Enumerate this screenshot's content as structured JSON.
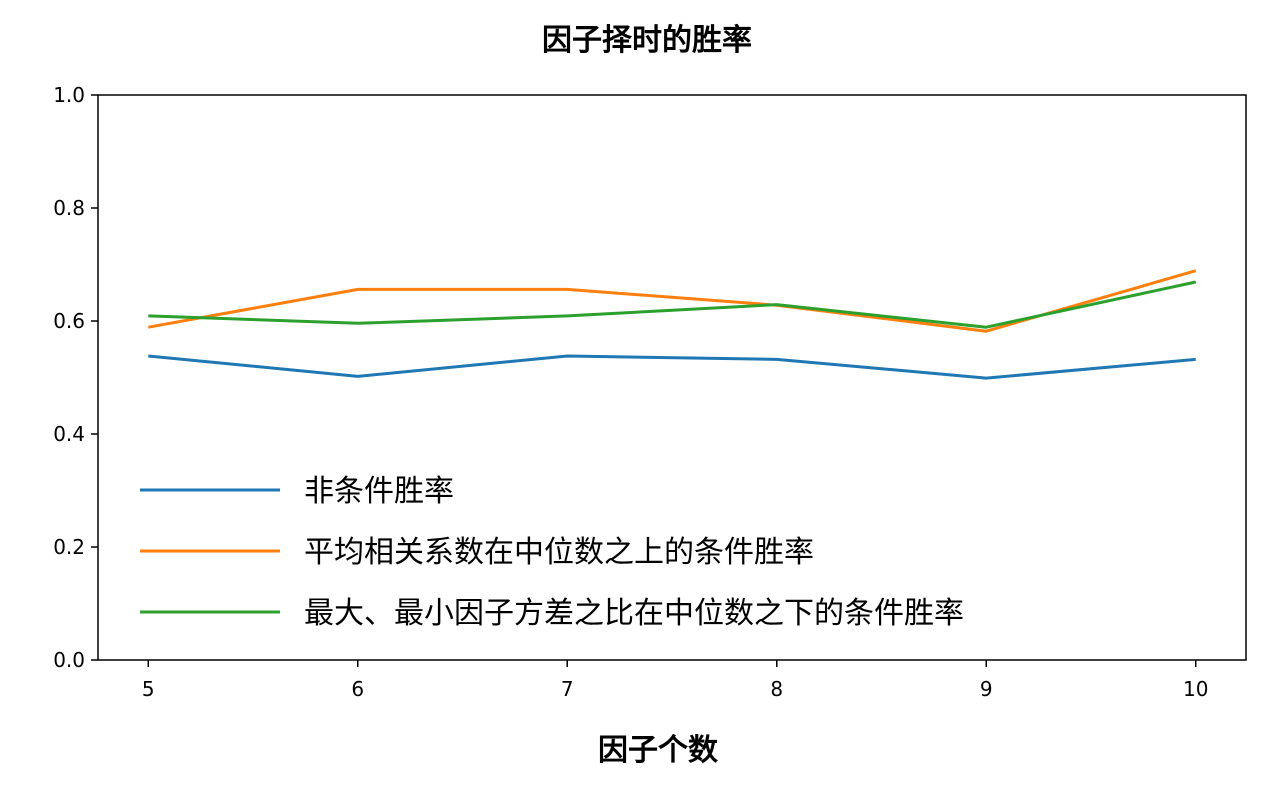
{
  "chart_data": {
    "type": "line",
    "title": "因子择时的胜率",
    "xlabel": "因子个数",
    "ylabel": "",
    "x": [
      5,
      6,
      7,
      8,
      9,
      10
    ],
    "xticks": [
      "5",
      "6",
      "7",
      "8",
      "9",
      "10"
    ],
    "xlim": [
      4.76,
      10.24
    ],
    "ylim": [
      0.0,
      1.0
    ],
    "yticks": [
      "0.0",
      "0.2",
      "0.4",
      "0.6",
      "0.8",
      "1.0"
    ],
    "grid": false,
    "legend_position": "lower-left",
    "series": [
      {
        "name": "非条件胜率",
        "color": "#1f77b4",
        "values": [
          0.538,
          0.502,
          0.538,
          0.532,
          0.499,
          0.532
        ]
      },
      {
        "name": "平均相关系数在中位数之上的条件胜率",
        "color": "#ff7f0e",
        "values": [
          0.589,
          0.656,
          0.656,
          0.628,
          0.582,
          0.689
        ]
      },
      {
        "name": "最大、最小因子方差之比在中位数之下的条件胜率",
        "color": "#2ca02c",
        "values": [
          0.609,
          0.596,
          0.609,
          0.629,
          0.589,
          0.669
        ]
      }
    ]
  }
}
